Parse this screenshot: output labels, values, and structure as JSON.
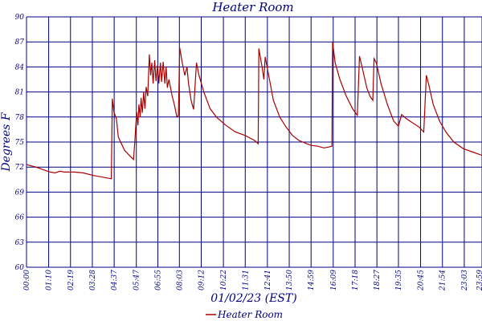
{
  "chart_data": {
    "type": "line",
    "title": "Heater Room",
    "xlabel": "01/02/23 (EST)",
    "ylabel": "Degrees F",
    "ylim": [
      60,
      90
    ],
    "yticks": [
      60,
      63,
      66,
      69,
      72,
      75,
      78,
      81,
      84,
      87,
      90
    ],
    "xlim": [
      "00:00",
      "23:59"
    ],
    "xticks": [
      "00:00",
      "01:10",
      "02:19",
      "03:28",
      "04:37",
      "05:47",
      "06:55",
      "08:03",
      "09:12",
      "10:22",
      "11:31",
      "12:41",
      "13:50",
      "14:59",
      "16:09",
      "17:18",
      "18:27",
      "19:35",
      "20:45",
      "21:54",
      "23:03",
      "23:59"
    ],
    "grid": true,
    "legend_position": "bottom-center",
    "series": [
      {
        "name": "Heater Room",
        "color": "#aa0000",
        "points": [
          [
            "00:00",
            72.3
          ],
          [
            "00:30",
            72.0
          ],
          [
            "01:00",
            71.6
          ],
          [
            "01:15",
            71.4
          ],
          [
            "01:30",
            71.3
          ],
          [
            "01:45",
            71.5
          ],
          [
            "02:00",
            71.4
          ],
          [
            "02:30",
            71.4
          ],
          [
            "03:00",
            71.3
          ],
          [
            "03:30",
            71.0
          ],
          [
            "04:00",
            70.8
          ],
          [
            "04:28",
            70.6
          ],
          [
            "04:31",
            80.2
          ],
          [
            "04:36",
            78.6
          ],
          [
            "04:44",
            77.8
          ],
          [
            "04:50",
            75.6
          ],
          [
            "05:10",
            74.0
          ],
          [
            "05:30",
            73.2
          ],
          [
            "05:38",
            72.9
          ],
          [
            "05:42",
            75.0
          ],
          [
            "05:48",
            78.6
          ],
          [
            "05:52",
            77.0
          ],
          [
            "05:55",
            79.5
          ],
          [
            "05:59",
            78.0
          ],
          [
            "06:02",
            80.3
          ],
          [
            "06:06",
            78.5
          ],
          [
            "06:10",
            81.0
          ],
          [
            "06:14",
            79.0
          ],
          [
            "06:18",
            81.6
          ],
          [
            "06:23",
            80.5
          ],
          [
            "06:28",
            85.5
          ],
          [
            "06:32",
            83.0
          ],
          [
            "06:36",
            84.5
          ],
          [
            "06:40",
            82.0
          ],
          [
            "06:45",
            84.8
          ],
          [
            "06:49",
            82.3
          ],
          [
            "06:54",
            84.2
          ],
          [
            "06:58",
            82.0
          ],
          [
            "07:03",
            84.5
          ],
          [
            "07:07",
            82.2
          ],
          [
            "07:12",
            84.6
          ],
          [
            "07:17",
            82.0
          ],
          [
            "07:21",
            84.0
          ],
          [
            "07:25",
            81.5
          ],
          [
            "07:30",
            82.5
          ],
          [
            "07:40",
            80.5
          ],
          [
            "07:47",
            79.5
          ],
          [
            "07:55",
            78.0
          ],
          [
            "08:00",
            78.2
          ],
          [
            "08:04",
            86.3
          ],
          [
            "08:12",
            84.5
          ],
          [
            "08:20",
            83.0
          ],
          [
            "08:27",
            84.0
          ],
          [
            "08:32",
            82.0
          ],
          [
            "08:40",
            80.0
          ],
          [
            "08:48",
            78.9
          ],
          [
            "08:57",
            84.5
          ],
          [
            "09:05",
            83.0
          ],
          [
            "09:20",
            81.0
          ],
          [
            "09:40",
            79.0
          ],
          [
            "10:00",
            78.0
          ],
          [
            "10:30",
            77.0
          ],
          [
            "11:00",
            76.2
          ],
          [
            "11:30",
            75.8
          ],
          [
            "12:00",
            75.2
          ],
          [
            "12:12",
            74.8
          ],
          [
            "12:14",
            86.2
          ],
          [
            "12:24",
            84.0
          ],
          [
            "12:30",
            82.5
          ],
          [
            "12:34",
            85.2
          ],
          [
            "12:40",
            84.0
          ],
          [
            "12:50",
            82.0
          ],
          [
            "13:00",
            80.0
          ],
          [
            "13:20",
            78.0
          ],
          [
            "13:40",
            76.8
          ],
          [
            "14:00",
            75.8
          ],
          [
            "14:20",
            75.2
          ],
          [
            "14:45",
            74.8
          ],
          [
            "15:00",
            74.6
          ],
          [
            "15:20",
            74.5
          ],
          [
            "15:40",
            74.3
          ],
          [
            "15:55",
            74.4
          ],
          [
            "16:05",
            74.5
          ],
          [
            "16:07",
            87.0
          ],
          [
            "16:15",
            84.5
          ],
          [
            "16:30",
            82.5
          ],
          [
            "16:50",
            80.5
          ],
          [
            "17:10",
            79.0
          ],
          [
            "17:25",
            78.2
          ],
          [
            "17:32",
            85.3
          ],
          [
            "17:40",
            84.0
          ],
          [
            "17:55",
            81.5
          ],
          [
            "18:05",
            80.5
          ],
          [
            "18:14",
            80.0
          ],
          [
            "18:18",
            85.0
          ],
          [
            "18:25",
            84.5
          ],
          [
            "18:40",
            82.0
          ],
          [
            "19:00",
            79.5
          ],
          [
            "19:20",
            77.5
          ],
          [
            "19:35",
            76.9
          ],
          [
            "19:45",
            78.3
          ],
          [
            "20:00",
            77.8
          ],
          [
            "20:20",
            77.3
          ],
          [
            "20:40",
            76.8
          ],
          [
            "20:55",
            76.2
          ],
          [
            "21:03",
            83.0
          ],
          [
            "21:10",
            82.0
          ],
          [
            "21:25",
            79.5
          ],
          [
            "21:45",
            77.5
          ],
          [
            "22:05",
            76.2
          ],
          [
            "22:30",
            75.0
          ],
          [
            "23:00",
            74.2
          ],
          [
            "23:30",
            73.8
          ],
          [
            "23:59",
            73.4
          ]
        ]
      }
    ]
  }
}
